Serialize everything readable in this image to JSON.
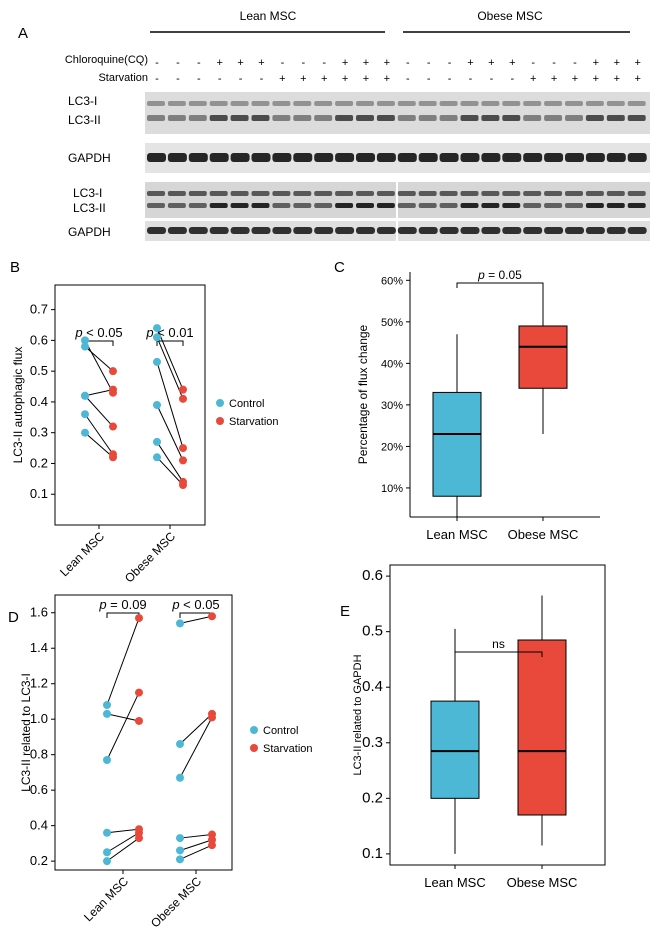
{
  "panel_a": {
    "label": "A",
    "groups": [
      "Lean MSC",
      "Obese MSC"
    ],
    "treatments": [
      {
        "name": "Chloroquine(CQ)",
        "signs": [
          "-",
          "-",
          "-",
          "+",
          "+",
          "+",
          "-",
          "-",
          "-",
          "+",
          "+",
          "+",
          "-",
          "-",
          "-",
          "+",
          "+",
          "+",
          "-",
          "-",
          "-",
          "+",
          "+",
          "+"
        ]
      },
      {
        "name": "Starvation",
        "signs": [
          "-",
          "-",
          "-",
          "-",
          "-",
          "-",
          "+",
          "+",
          "+",
          "+",
          "+",
          "+",
          "-",
          "-",
          "-",
          "-",
          "-",
          "-",
          "+",
          "+",
          "+",
          "+",
          "+",
          "+"
        ]
      }
    ],
    "blots": [
      {
        "labels": [
          "LC3-I",
          "LC3-II"
        ]
      },
      {
        "labels": [
          "GAPDH"
        ]
      },
      {
        "labels": [
          "LC3-I",
          "LC3-II"
        ]
      },
      {
        "labels": [
          "GAPDH"
        ]
      }
    ]
  },
  "colors": {
    "control": "#4db8d5",
    "starvation": "#e8493b"
  },
  "chart_data": [
    {
      "panel": "B",
      "type": "scatter",
      "ylabel": "LC3-II autophagic flux",
      "ylim": [
        0.0,
        0.78
      ],
      "yticks": [
        "0.1",
        "0.2",
        "0.3",
        "0.4",
        "0.5",
        "0.6",
        "0.7"
      ],
      "yvals": [
        0.1,
        0.2,
        0.3,
        0.4,
        0.5,
        0.6,
        0.7
      ],
      "categories": [
        "Lean MSC",
        "Obese MSC"
      ],
      "legend": [
        "Control",
        "Starvation"
      ],
      "pvalues": [
        "p < 0.05",
        "p < 0.01"
      ],
      "pairs": [
        [
          [
            0.6,
            0.43
          ],
          [
            0.58,
            0.5
          ],
          [
            0.42,
            0.44
          ],
          [
            0.42,
            0.32
          ],
          [
            0.36,
            0.23
          ],
          [
            0.3,
            0.22
          ]
        ],
        [
          [
            0.64,
            0.44
          ],
          [
            0.61,
            0.41
          ],
          [
            0.53,
            0.25
          ],
          [
            0.39,
            0.21
          ],
          [
            0.27,
            0.14
          ],
          [
            0.22,
            0.13
          ]
        ]
      ]
    },
    {
      "panel": "C",
      "type": "box",
      "ylabel": "Percentage of flux change",
      "ylim": [
        0.03,
        0.62
      ],
      "yticks": [
        "10%",
        "20%",
        "30%",
        "40%",
        "50%",
        "60%"
      ],
      "yvals": [
        0.1,
        0.2,
        0.3,
        0.4,
        0.5,
        0.6
      ],
      "categories": [
        "Lean MSC",
        "Obese MSC"
      ],
      "annotation": "p = 0.05",
      "boxes": [
        {
          "min": 0.03,
          "q1": 0.08,
          "median": 0.23,
          "q3": 0.33,
          "max": 0.47
        },
        {
          "min": 0.23,
          "q1": 0.34,
          "median": 0.44,
          "q3": 0.49,
          "max": 0.59
        }
      ]
    },
    {
      "panel": "D",
      "type": "scatter",
      "ylabel": "LC3-II related to LC3-I",
      "ylim": [
        0.15,
        1.7
      ],
      "yticks": [
        "0.2",
        "0.4",
        "0.6",
        "0.8",
        "1.0",
        "1.2",
        "1.4",
        "1.6"
      ],
      "yvals": [
        0.2,
        0.4,
        0.6,
        0.8,
        1.0,
        1.2,
        1.4,
        1.6
      ],
      "categories": [
        "Lean MSC",
        "Obese MSC"
      ],
      "legend": [
        "Control",
        "Starvation"
      ],
      "pvalues": [
        "p = 0.09",
        "p < 0.05"
      ],
      "pairs": [
        [
          [
            1.08,
            1.57
          ],
          [
            1.03,
            0.99
          ],
          [
            0.77,
            1.15
          ],
          [
            0.36,
            0.38
          ],
          [
            0.25,
            0.36
          ],
          [
            0.2,
            0.33
          ]
        ],
        [
          [
            1.54,
            1.58
          ],
          [
            0.86,
            1.03
          ],
          [
            0.67,
            1.01
          ],
          [
            0.33,
            0.35
          ],
          [
            0.26,
            0.32
          ],
          [
            0.21,
            0.29
          ]
        ]
      ]
    },
    {
      "panel": "E",
      "type": "box",
      "ylabel": "LC3-II related to GAPDH",
      "ylim": [
        0.08,
        0.62
      ],
      "yticks": [
        "0.1",
        "0.2",
        "0.3",
        "0.4",
        "0.5",
        "0.6"
      ],
      "yvals": [
        0.1,
        0.2,
        0.3,
        0.4,
        0.5,
        0.6
      ],
      "categories": [
        "Lean MSC",
        "Obese MSC"
      ],
      "annotation": "ns",
      "boxes": [
        {
          "min": 0.1,
          "q1": 0.2,
          "median": 0.285,
          "q3": 0.375,
          "max": 0.505
        },
        {
          "min": 0.115,
          "q1": 0.17,
          "median": 0.285,
          "q3": 0.485,
          "max": 0.565
        }
      ]
    }
  ]
}
